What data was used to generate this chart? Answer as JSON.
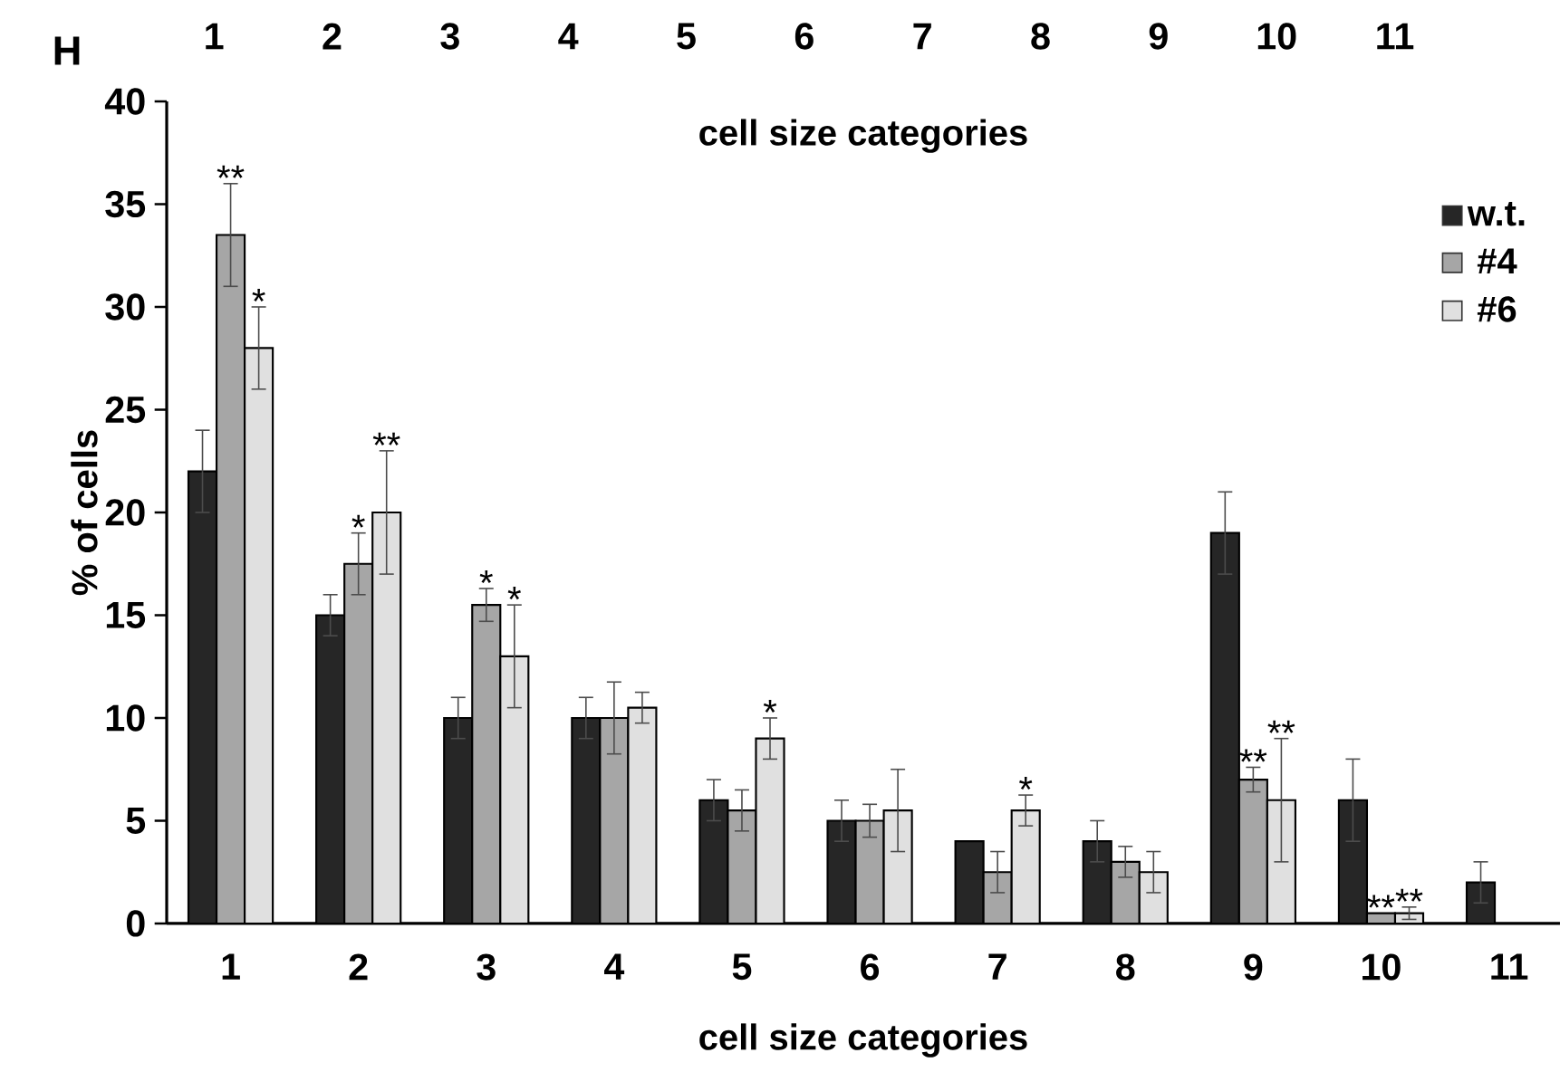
{
  "chart_data": {
    "type": "bar",
    "xlabel": "cell size categories",
    "ylabel": "% of cells",
    "x2label": "cell size categories",
    "x2lim": [
      0.6,
      12.4
    ],
    "x2ticks": [
      1,
      2,
      3,
      4,
      5,
      6,
      7,
      8,
      9,
      10,
      11
    ],
    "categories": [
      "1",
      "2",
      "3",
      "4",
      "5",
      "6",
      "7",
      "8",
      "9",
      "10",
      "11"
    ],
    "ylim": [
      0,
      40
    ],
    "yticks": [
      0,
      5,
      10,
      15,
      20,
      25,
      30,
      35,
      40
    ],
    "series": [
      {
        "name": "w.t.",
        "color": "#262626",
        "values": [
          22,
          15,
          10,
          10,
          6,
          5,
          4,
          4,
          19,
          6,
          2
        ],
        "errors": [
          2,
          1,
          1,
          1,
          1,
          1,
          null,
          1,
          2,
          2,
          1
        ]
      },
      {
        "name": "#4",
        "color": "#a6a6a6",
        "values": [
          33.5,
          17.5,
          15.5,
          10,
          5.5,
          5,
          2.5,
          3,
          7,
          0.5,
          null
        ],
        "errors": [
          2.5,
          1.5,
          0.8,
          1.75,
          1,
          0.8,
          1,
          0.75,
          0.6,
          null,
          null
        ],
        "value_labels": [
          "**",
          "*",
          "*",
          null,
          null,
          null,
          null,
          null,
          "**",
          "**",
          null
        ]
      },
      {
        "name": "#6",
        "color": "#e0e0e0",
        "values": [
          28,
          20,
          13,
          10.5,
          9,
          5.5,
          5.5,
          2.5,
          6,
          0.5,
          null
        ],
        "errors": [
          2,
          3,
          2.5,
          0.75,
          1,
          2,
          0.75,
          1,
          3,
          0.3,
          null
        ],
        "value_labels": [
          "*",
          "**",
          "*",
          null,
          "*",
          null,
          "*",
          null,
          "**",
          "**",
          null
        ]
      }
    ],
    "legend": "top right",
    "grid": false,
    "annotations": [
      "H"
    ]
  }
}
